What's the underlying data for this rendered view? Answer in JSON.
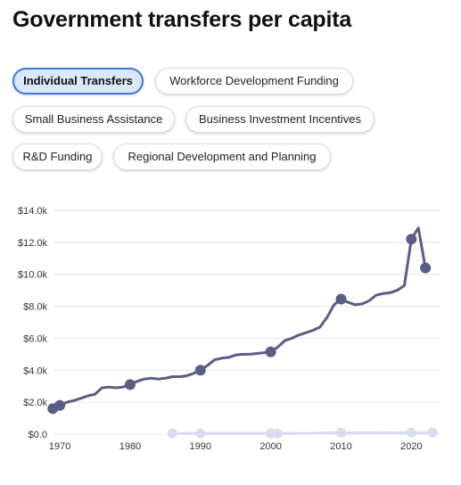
{
  "page": {
    "title": "Government transfers per capita"
  },
  "tabs": [
    {
      "label": "Individual Transfers",
      "active": true
    },
    {
      "label": "Workforce Development Funding",
      "active": false
    },
    {
      "label": "Small Business Assistance",
      "active": false
    },
    {
      "label": "Business Investment Incentives",
      "active": false
    },
    {
      "label": "R&D Funding",
      "active": false
    },
    {
      "label": "Regional Development and Planning",
      "active": false
    }
  ],
  "colors": {
    "accent": "#3d78d8",
    "series_main": "#5a5d85",
    "series_faded": "#d9dbee",
    "grid": "#e5e5e5"
  },
  "chart_data": {
    "type": "line",
    "ylim": [
      0,
      14000
    ],
    "xlim": [
      1969,
      2023
    ],
    "yticks": [
      "$0.0",
      "$2.0k",
      "$4.0k",
      "$6.0k",
      "$8.0k",
      "$10.0k",
      "$12.0k",
      "$14.0k"
    ],
    "xticks": [
      "1970",
      "1980",
      "1990",
      "2000",
      "2010",
      "2020"
    ],
    "series": [
      {
        "x": [
          1969,
          1970,
          1971,
          1972,
          1973,
          1974,
          1975,
          1976,
          1977,
          1978,
          1979,
          1980,
          1981,
          1982,
          1983,
          1984,
          1985,
          1986,
          1987,
          1988,
          1989,
          1990,
          1991,
          1992,
          1993,
          1994,
          1995,
          1996,
          1997,
          1998,
          1999,
          2000,
          2001,
          2002,
          2003,
          2004,
          2005,
          2006,
          2007,
          2008,
          2009,
          2010,
          2011,
          2012,
          2013,
          2014,
          2015,
          2016,
          2017,
          2018,
          2019,
          2020,
          2021,
          2022
        ],
        "values": [
          1600,
          1800,
          2000,
          2100,
          2250,
          2400,
          2500,
          2900,
          2950,
          2900,
          2950,
          3100,
          3300,
          3450,
          3500,
          3450,
          3500,
          3600,
          3600,
          3650,
          3800,
          4000,
          4300,
          4650,
          4750,
          4800,
          4950,
          5000,
          5000,
          5050,
          5100,
          5150,
          5450,
          5850,
          6000,
          6200,
          6350,
          6500,
          6700,
          7300,
          8100,
          8450,
          8250,
          8100,
          8150,
          8350,
          8700,
          8800,
          8850,
          9000,
          9300,
          12200,
          12900,
          10400
        ],
        "markers": [
          1969,
          1970,
          1980,
          1990,
          2000,
          2010,
          2020,
          2022
        ]
      },
      {
        "x": [
          1986,
          1990,
          2000,
          2001,
          2010,
          2020,
          2023
        ],
        "values": [
          50,
          50,
          50,
          40,
          90,
          100,
          100
        ],
        "markers": [
          1986,
          1990,
          2000,
          2001,
          2010,
          2020,
          2023
        ]
      }
    ]
  }
}
